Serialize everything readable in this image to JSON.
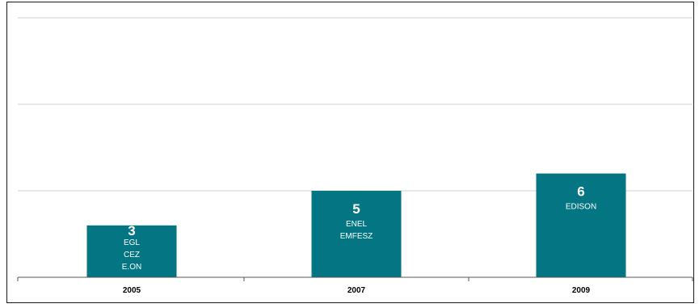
{
  "chart_data": {
    "type": "bar",
    "title": "",
    "xlabel": "",
    "ylabel": "",
    "categories": [
      "2005",
      "2007",
      "2009"
    ],
    "values": [
      3,
      5,
      6
    ],
    "bar_labels": [
      [
        "EGL",
        "CEZ",
        "E.ON"
      ],
      [
        "ENEL",
        "EMFESZ"
      ],
      [
        "EDISON"
      ]
    ],
    "ylim": [
      0,
      15
    ],
    "grid": true,
    "legend": "none",
    "bar_color": "#037583",
    "grid_color": "#d0d0d0"
  }
}
